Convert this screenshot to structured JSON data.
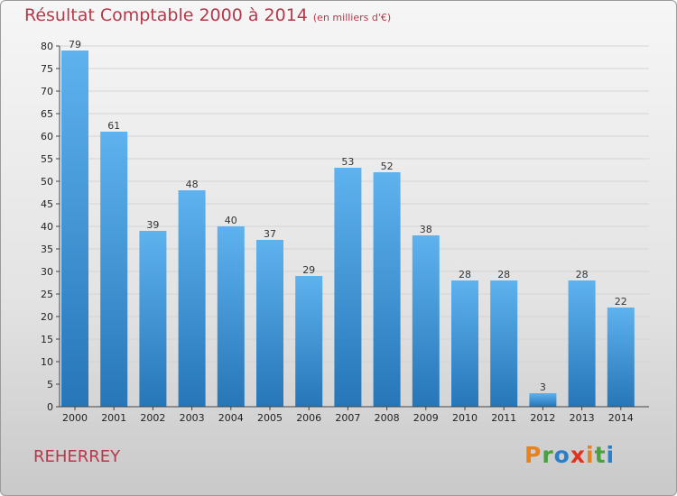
{
  "title": "Résultat Comptable 2000 à 2014",
  "subtitle": "(en milliers d'€)",
  "commune": "REHERREY",
  "logo": {
    "text": "Proxiti",
    "colors": [
      "#e8821e",
      "#4aa03f",
      "#2a7fc9",
      "#e0331f",
      "#e8821e",
      "#4aa03f",
      "#2a7fc9"
    ]
  },
  "colors": {
    "bar_top": "#5eb2ee",
    "bar_bottom": "#2676b8",
    "title": "#b5394a"
  },
  "chart_data": {
    "type": "bar",
    "title": "Résultat Comptable 2000 à 2014",
    "subtitle": "(en milliers d'€)",
    "categories": [
      "2000",
      "2001",
      "2002",
      "2003",
      "2004",
      "2005",
      "2006",
      "2007",
      "2008",
      "2009",
      "2010",
      "2011",
      "2012",
      "2013",
      "2014"
    ],
    "values": [
      79,
      61,
      39,
      48,
      40,
      37,
      29,
      53,
      52,
      38,
      28,
      28,
      3,
      28,
      22
    ],
    "ylim": [
      0,
      80
    ],
    "yticks": [
      0,
      5,
      10,
      15,
      20,
      25,
      30,
      35,
      40,
      45,
      50,
      55,
      60,
      65,
      70,
      75,
      80
    ],
    "grid": true,
    "data_labels": true
  }
}
